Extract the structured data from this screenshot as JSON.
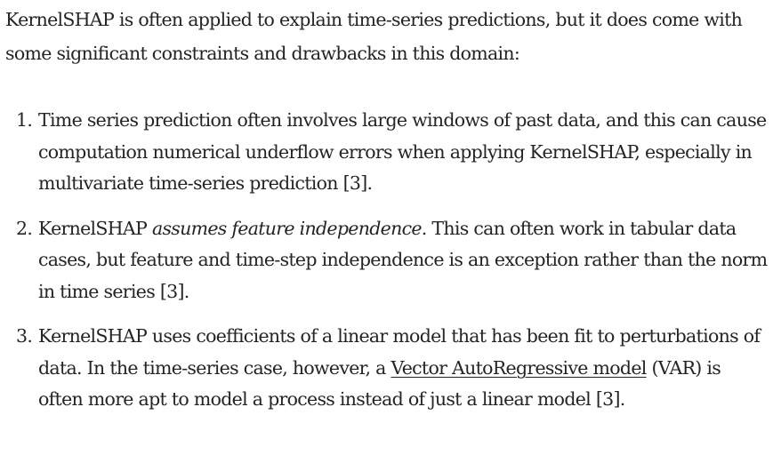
{
  "intro": "KernelSHAP is often applied to explain time-series predictions, but it does come with some significant constraints and drawbacks in this domain:",
  "items": [
    {
      "number": "1.",
      "text": "Time series prediction often involves large windows of past data, and this can cause computation numerical underflow errors when applying KernelSHAP, especially in multivariate time-series prediction [3]."
    },
    {
      "number": "2.",
      "before": "KernelSHAP ",
      "emphasis": "assumes feature independence",
      "after": ". This can often work in tabular data cases, but feature and time-step independence is an exception rather than the norm in time series [3]."
    },
    {
      "number": "3.",
      "before": "KernelSHAP uses coefficients of a linear model that has been fit to perturbations of data. In the time-series case, however, a ",
      "link": "Vector AutoRegressive model",
      "after": " (VAR) is often more apt to model a process instead of just a linear model [3]."
    }
  ]
}
